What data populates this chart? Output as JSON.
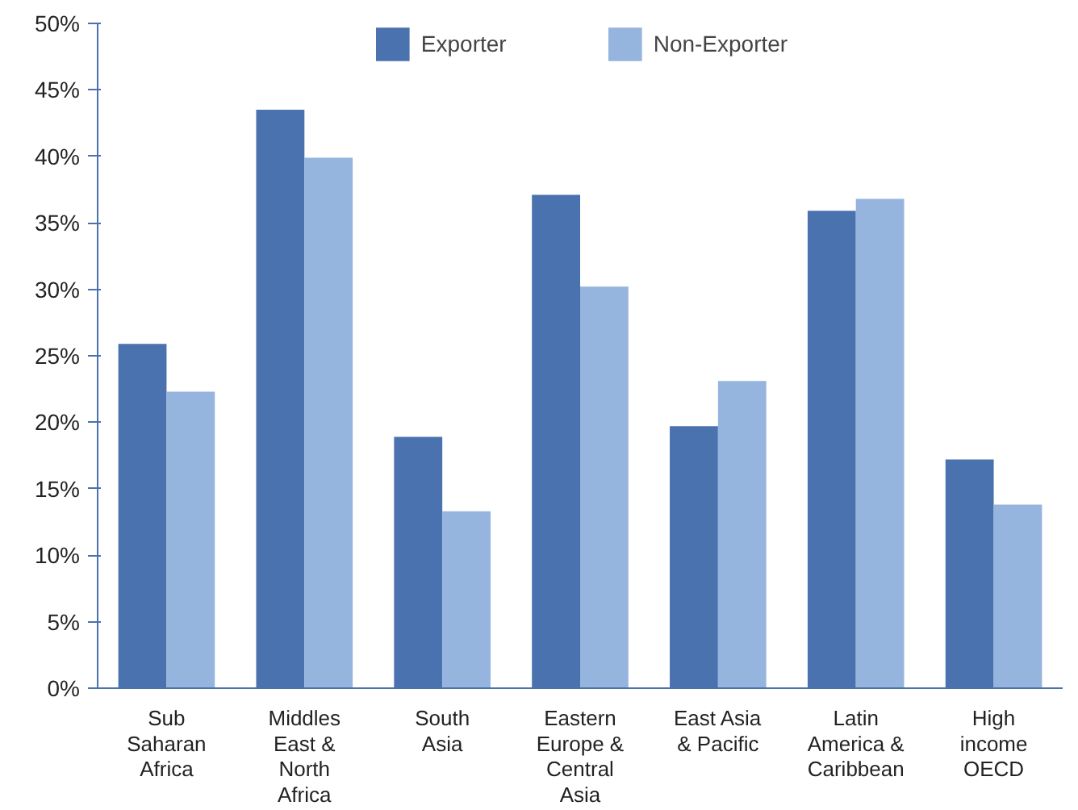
{
  "chart_data": {
    "type": "bar",
    "categories": [
      "Sub\nSaharan\nAfrica",
      "Middles\nEast &\nNorth\nAfrica",
      "South\nAsia",
      "Eastern\nEurope &\nCentral\nAsia",
      "East Asia\n& Pacific",
      "Latin\nAmerica &\nCaribbean",
      "High\nincome\nOECD"
    ],
    "series": [
      {
        "name": "Exporter",
        "color": "#4a72ae",
        "values": [
          25.9,
          43.5,
          18.9,
          37.1,
          19.7,
          35.9,
          17.2
        ]
      },
      {
        "name": "Non-Exporter",
        "color": "#95b4de",
        "values": [
          22.3,
          39.9,
          13.3,
          30.2,
          23.1,
          36.8,
          13.8
        ]
      }
    ],
    "ylim": [
      0,
      50
    ],
    "yticks": [
      {
        "value": 0,
        "label": "0%"
      },
      {
        "value": 5,
        "label": "5%"
      },
      {
        "value": 10,
        "label": "10%"
      },
      {
        "value": 15,
        "label": "15%"
      },
      {
        "value": 20,
        "label": "20%"
      },
      {
        "value": 25,
        "label": "25%"
      },
      {
        "value": 30,
        "label": "30%"
      },
      {
        "value": 35,
        "label": "35%"
      },
      {
        "value": 40,
        "label": "40%"
      },
      {
        "value": 45,
        "label": "45%"
      },
      {
        "value": 50,
        "label": "50%"
      }
    ],
    "legend": "top",
    "grid": false
  }
}
